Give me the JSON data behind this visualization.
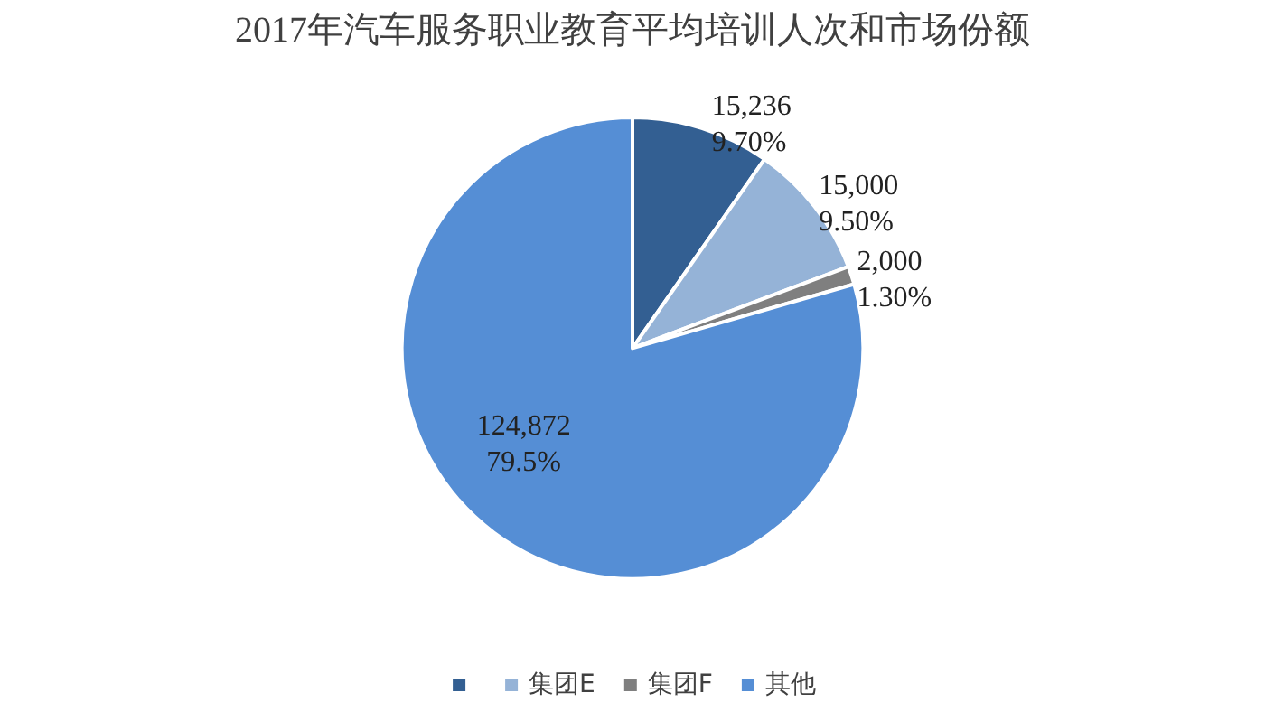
{
  "chart_data": {
    "type": "pie",
    "title": "2017年汽车服务职业教育平均培训人次和市场份额",
    "categories": [
      null,
      "集团E",
      "集团F",
      "其他"
    ],
    "values": [
      15236,
      15000,
      2000,
      124872
    ],
    "value_labels": [
      "15,236\n9.70%",
      "15,000\n9.50%",
      "2,000\n1.30%",
      "124,872\n79.5%"
    ],
    "colors": [
      "#335f92",
      "#95b3d7",
      "#7f7f7f",
      "#558ed5"
    ],
    "legend": "bottom"
  }
}
